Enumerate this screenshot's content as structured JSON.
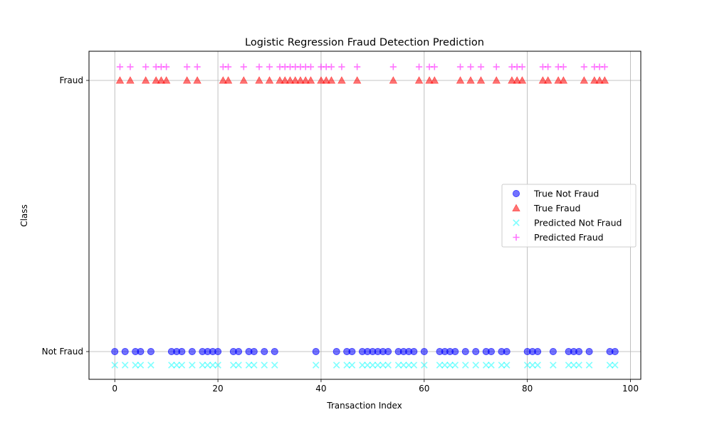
{
  "chart_data": {
    "type": "scatter",
    "title": "Logistic Regression Fraud Detection Prediction",
    "xlabel": "Transaction Index",
    "ylabel": "Class",
    "xlim": [
      -5,
      102
    ],
    "xticks": [
      0,
      20,
      40,
      60,
      80,
      100
    ],
    "yticks": [
      {
        "value": 0,
        "label": "Not Fraud"
      },
      {
        "value": 1,
        "label": "Fraud"
      }
    ],
    "grid": true,
    "legend_position": "center-right",
    "true_fraud_indices": [
      1,
      3,
      6,
      8,
      9,
      10,
      14,
      16,
      21,
      22,
      25,
      28,
      30,
      32,
      33,
      34,
      35,
      36,
      37,
      38,
      40,
      41,
      42,
      44,
      47,
      54,
      59,
      61,
      62,
      67,
      69,
      71,
      74,
      77,
      78,
      79,
      83,
      84,
      86,
      87,
      91,
      93,
      94,
      95
    ],
    "series": [
      {
        "name": "True Not Fraud",
        "marker": "circle",
        "color": "#0000ff",
        "class": "not_fraud",
        "offset": 0
      },
      {
        "name": "True Fraud",
        "marker": "triangle",
        "color": "#ff0000",
        "class": "fraud",
        "offset": 0
      },
      {
        "name": "Predicted Not Fraud",
        "marker": "x",
        "color": "#00ffff",
        "class": "not_fraud",
        "offset": -0.05
      },
      {
        "name": "Predicted Fraud",
        "marker": "plus",
        "color": "#ff00ff",
        "class": "fraud",
        "offset": 0.05
      }
    ]
  }
}
